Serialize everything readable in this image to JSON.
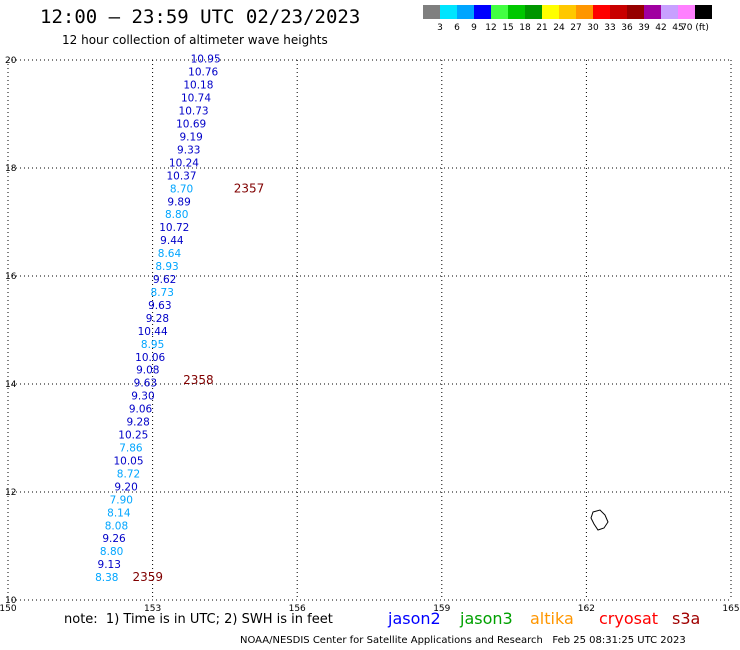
{
  "title": "12:00 – 23:59 UTC 02/23/2023",
  "subtitle": "12 hour collection of altimeter wave heights",
  "colorbar": {
    "colors": [
      "#7f7f7f",
      "#00e5ff",
      "#00a5ff",
      "#0000ff",
      "#42ff42",
      "#00c800",
      "#009600",
      "#ffff00",
      "#ffc800",
      "#ff9600",
      "#ff0000",
      "#c80000",
      "#960000",
      "#a000a0",
      "#c8a0ff",
      "#ff80ff",
      "#000000"
    ],
    "labels": [
      "3",
      "6",
      "9",
      "12",
      "15",
      "18",
      "21",
      "24",
      "27",
      "30",
      "33",
      "36",
      "39",
      "42",
      "45",
      "70 (ft)"
    ]
  },
  "map": {
    "lon_range": [
      150,
      165
    ],
    "lat_range": [
      10,
      20
    ],
    "x_ticks": [
      "150",
      "153",
      "156",
      "159",
      "162",
      "165"
    ],
    "y_ticks": [
      "10",
      "12",
      "14",
      "16",
      "18",
      "20"
    ],
    "grid": true
  },
  "chart_data": {
    "type": "scatter",
    "x_unit": "degrees longitude",
    "y_unit": "degrees latitude",
    "value_unit": "ft",
    "xlim": [
      150,
      165
    ],
    "ylim": [
      10,
      20
    ],
    "points": [
      {
        "lon": 154.1,
        "lat": 19.95,
        "value": "10.95",
        "color": "#0000c8"
      },
      {
        "lon": 154.05,
        "lat": 19.71,
        "value": "10.76",
        "color": "#0000c8"
      },
      {
        "lon": 153.95,
        "lat": 19.47,
        "value": "10.18",
        "color": "#0000c8"
      },
      {
        "lon": 153.9,
        "lat": 19.23,
        "value": "10.74",
        "color": "#0000c8"
      },
      {
        "lon": 153.85,
        "lat": 18.99,
        "value": "10.73",
        "color": "#0000c8"
      },
      {
        "lon": 153.8,
        "lat": 18.75,
        "value": "10.69",
        "color": "#0000c8"
      },
      {
        "lon": 153.8,
        "lat": 18.51,
        "value": "9.19",
        "color": "#0000c8"
      },
      {
        "lon": 153.75,
        "lat": 18.27,
        "value": "9.33",
        "color": "#0000c8"
      },
      {
        "lon": 153.65,
        "lat": 18.03,
        "value": "10.24",
        "color": "#0000c8"
      },
      {
        "lon": 153.6,
        "lat": 17.79,
        "value": "10.37",
        "color": "#0000c8"
      },
      {
        "lon": 153.6,
        "lat": 17.55,
        "value": "8.70",
        "color": "#00a5ff"
      },
      {
        "lon": 153.55,
        "lat": 17.31,
        "value": "9.89",
        "color": "#0000c8"
      },
      {
        "lon": 153.5,
        "lat": 17.07,
        "value": "8.80",
        "color": "#00a5ff"
      },
      {
        "lon": 153.45,
        "lat": 16.83,
        "value": "10.72",
        "color": "#0000c8"
      },
      {
        "lon": 153.4,
        "lat": 16.59,
        "value": "9.44",
        "color": "#0000c8"
      },
      {
        "lon": 153.35,
        "lat": 16.35,
        "value": "8.64",
        "color": "#00a5ff"
      },
      {
        "lon": 153.3,
        "lat": 16.11,
        "value": "8.93",
        "color": "#00a5ff"
      },
      {
        "lon": 153.25,
        "lat": 15.87,
        "value": "9.62",
        "color": "#0000c8"
      },
      {
        "lon": 153.2,
        "lat": 15.63,
        "value": "8.73",
        "color": "#00a5ff"
      },
      {
        "lon": 153.15,
        "lat": 15.39,
        "value": "9.63",
        "color": "#0000c8"
      },
      {
        "lon": 153.1,
        "lat": 15.15,
        "value": "9.28",
        "color": "#0000c8"
      },
      {
        "lon": 153.0,
        "lat": 14.91,
        "value": "10.44",
        "color": "#0000c8"
      },
      {
        "lon": 153.0,
        "lat": 14.67,
        "value": "8.95",
        "color": "#00a5ff"
      },
      {
        "lon": 152.95,
        "lat": 14.43,
        "value": "10.06",
        "color": "#0000c8"
      },
      {
        "lon": 152.9,
        "lat": 14.19,
        "value": "9.08",
        "color": "#0000c8"
      },
      {
        "lon": 152.85,
        "lat": 13.95,
        "value": "9.63",
        "color": "#0000c8"
      },
      {
        "lon": 152.8,
        "lat": 13.71,
        "value": "9.30",
        "color": "#0000c8"
      },
      {
        "lon": 152.75,
        "lat": 13.47,
        "value": "9.06",
        "color": "#0000c8"
      },
      {
        "lon": 152.7,
        "lat": 13.23,
        "value": "9.28",
        "color": "#0000c8"
      },
      {
        "lon": 152.6,
        "lat": 12.99,
        "value": "10.25",
        "color": "#0000c8"
      },
      {
        "lon": 152.55,
        "lat": 12.75,
        "value": "7.86",
        "color": "#00a5ff"
      },
      {
        "lon": 152.5,
        "lat": 12.51,
        "value": "10.05",
        "color": "#0000c8"
      },
      {
        "lon": 152.5,
        "lat": 12.27,
        "value": "8.72",
        "color": "#00a5ff"
      },
      {
        "lon": 152.45,
        "lat": 12.03,
        "value": "9.20",
        "color": "#0000c8"
      },
      {
        "lon": 152.35,
        "lat": 11.79,
        "value": "7.90",
        "color": "#00a5ff"
      },
      {
        "lon": 152.3,
        "lat": 11.55,
        "value": "8.14",
        "color": "#00a5ff"
      },
      {
        "lon": 152.25,
        "lat": 11.31,
        "value": "8.08",
        "color": "#00a5ff"
      },
      {
        "lon": 152.2,
        "lat": 11.07,
        "value": "9.26",
        "color": "#0000c8"
      },
      {
        "lon": 152.15,
        "lat": 10.83,
        "value": "8.80",
        "color": "#00a5ff"
      },
      {
        "lon": 152.1,
        "lat": 10.59,
        "value": "9.13",
        "color": "#0000c8"
      },
      {
        "lon": 152.05,
        "lat": 10.35,
        "value": "8.38",
        "color": "#00a5ff"
      }
    ],
    "time_labels": [
      {
        "lon": 155.0,
        "lat": 17.55,
        "text": "2357"
      },
      {
        "lon": 153.95,
        "lat": 14.0,
        "text": "2358"
      },
      {
        "lon": 152.9,
        "lat": 10.35,
        "text": "2359"
      }
    ],
    "time_label_color": "#800000"
  },
  "note": "note:  1) Time is in UTC; 2) SWH is in feet",
  "legend": [
    {
      "name": "jason2",
      "color": "#0000ff"
    },
    {
      "name": "jason3",
      "color": "#00a000"
    },
    {
      "name": "altika",
      "color": "#ff9600"
    },
    {
      "name": "cryosat",
      "color": "#ff0000"
    },
    {
      "name": "s3a",
      "color": "#a00000"
    }
  ],
  "credit": "NOAA/NESDIS Center for Satellite Applications and Research   Feb 25 08:31:25 UTC 2023"
}
